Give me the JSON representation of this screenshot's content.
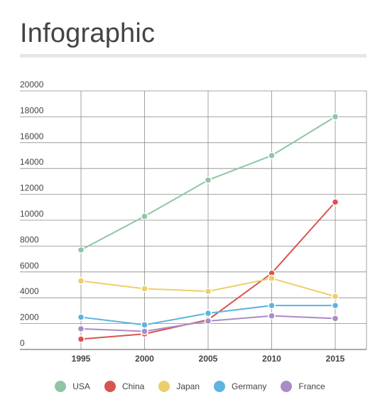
{
  "page": {
    "title": "Infographic"
  },
  "chart_data": {
    "type": "line",
    "x": [
      "1995",
      "2000",
      "2005",
      "2010",
      "2015"
    ],
    "y_ticks": [
      "20000",
      "18000",
      "16000",
      "14000",
      "12000",
      "10000",
      "8000",
      "6000",
      "4000",
      "2000",
      "0"
    ],
    "ylim": [
      0,
      20000
    ],
    "grid": true,
    "legend_position": "bottom",
    "series": [
      {
        "name": "USA",
        "color": "#8ec6a4",
        "values": [
          7700,
          10300,
          13100,
          15000,
          18000
        ]
      },
      {
        "name": "China",
        "color": "#d9534f",
        "values": [
          800,
          1200,
          2300,
          5900,
          11400
        ]
      },
      {
        "name": "Japan",
        "color": "#eccf6a",
        "values": [
          5300,
          4700,
          4500,
          5500,
          4100
        ]
      },
      {
        "name": "Germany",
        "color": "#5db4e0",
        "values": [
          2500,
          1900,
          2800,
          3400,
          3400
        ]
      },
      {
        "name": "France",
        "color": "#a98bc6",
        "values": [
          1600,
          1400,
          2200,
          2600,
          2400
        ]
      }
    ]
  }
}
